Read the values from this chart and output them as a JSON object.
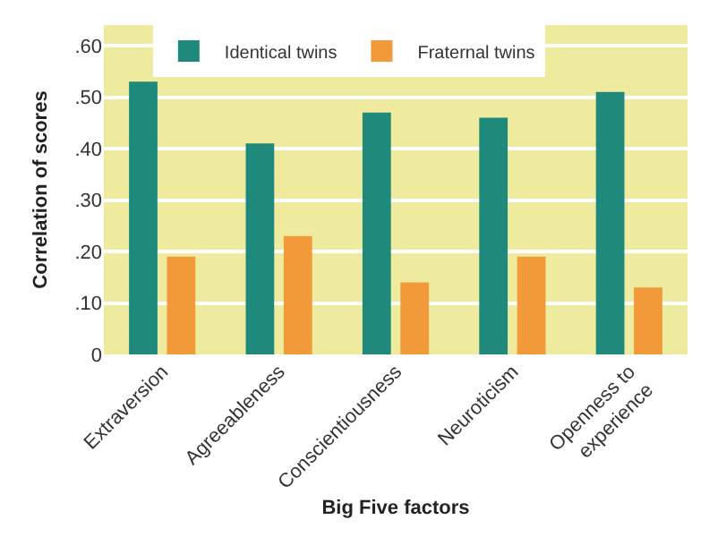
{
  "chart_data": {
    "type": "bar",
    "xlabel": "Big Five factors",
    "ylabel": "Correlation of scores",
    "categories": [
      "Extraversion",
      "Agreeableness",
      "Conscientiousness",
      "Neuroticism",
      "Openness to experience"
    ],
    "series": [
      {
        "name": "Identical twins",
        "color": "#1f8a7c",
        "values": [
          0.53,
          0.41,
          0.47,
          0.46,
          0.51
        ]
      },
      {
        "name": "Fraternal twins",
        "color": "#f29a3a",
        "values": [
          0.19,
          0.23,
          0.14,
          0.19,
          0.13
        ]
      }
    ],
    "ylim": [
      0,
      0.64
    ],
    "yticks": [
      0,
      {
        "value": 0.1,
        "label": ".10"
      },
      {
        "value": 0.2,
        "label": ".20"
      },
      {
        "value": 0.3,
        "label": ".30"
      },
      {
        "value": 0.4,
        "label": ".40"
      },
      {
        "value": 0.5,
        "label": ".50"
      },
      {
        "value": 0.6,
        "label": ".60"
      }
    ],
    "grid": "y",
    "legend": "top"
  }
}
